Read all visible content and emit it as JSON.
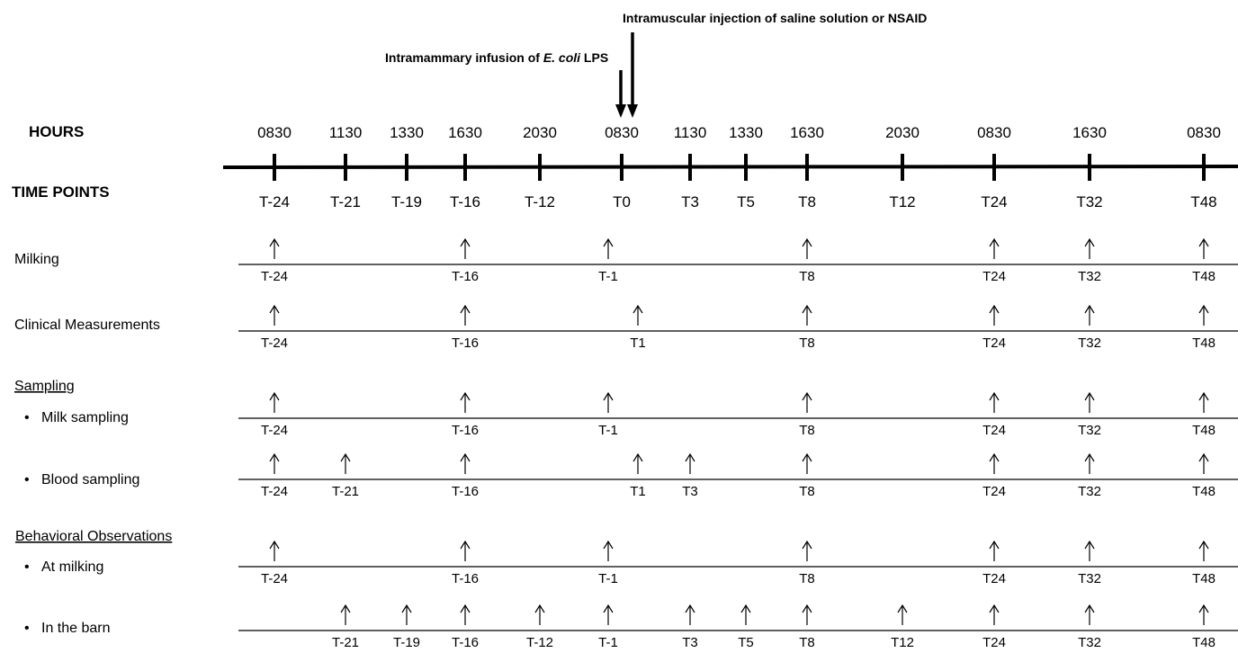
{
  "annotations": {
    "injection": "Intramuscular injection of saline solution or NSAID",
    "infusion_prefix": "Intramammary infusion of ",
    "infusion_italic": "E. coli",
    "infusion_suffix": " LPS"
  },
  "header": {
    "hours_label": "HOURS",
    "timepoints_label": "TIME POINTS"
  },
  "timeline": [
    {
      "hour": "0830",
      "tp": "T-24"
    },
    {
      "hour": "1130",
      "tp": "T-21"
    },
    {
      "hour": "1330",
      "tp": "T-19"
    },
    {
      "hour": "1630",
      "tp": "T-16"
    },
    {
      "hour": "2030",
      "tp": "T-12"
    },
    {
      "hour": "0830",
      "tp": "T0"
    },
    {
      "hour": "1130",
      "tp": "T3"
    },
    {
      "hour": "1330",
      "tp": "T5"
    },
    {
      "hour": "1630",
      "tp": "T8"
    },
    {
      "hour": "2030",
      "tp": "T12"
    },
    {
      "hour": "0830",
      "tp": "T24"
    },
    {
      "hour": "1630",
      "tp": "T32"
    },
    {
      "hour": "0830",
      "tp": "T48"
    }
  ],
  "section_headers": [
    {
      "label": "Sampling"
    },
    {
      "label": "Behavioral Observations"
    }
  ],
  "rows": [
    {
      "label": "Milking",
      "bullet": false,
      "events": [
        "T-24",
        "T-16",
        "T-1",
        "T8",
        "T24",
        "T32",
        "T48"
      ]
    },
    {
      "label": "Clinical Measurements",
      "bullet": false,
      "events": [
        "T-24",
        "T-16",
        "T1",
        "T8",
        "T24",
        "T32",
        "T48"
      ]
    },
    {
      "label": "Milk sampling",
      "bullet": true,
      "events": [
        "T-24",
        "T-16",
        "T-1",
        "T8",
        "T24",
        "T32",
        "T48"
      ]
    },
    {
      "label": "Blood sampling",
      "bullet": true,
      "events": [
        "T-24",
        "T-21",
        "T-16",
        "T1",
        "T3",
        "T8",
        "T24",
        "T32",
        "T48"
      ]
    },
    {
      "label": "At milking",
      "bullet": true,
      "events": [
        "T-24",
        "T-16",
        "T-1",
        "T8",
        "T24",
        "T32",
        "T48"
      ]
    },
    {
      "label": "In the barn",
      "bullet": true,
      "events": [
        "T-21",
        "T-19",
        "T-16",
        "T-12",
        "T-1",
        "T3",
        "T5",
        "T8",
        "T12",
        "T24",
        "T32",
        "T48"
      ]
    }
  ],
  "bullet_char": "•"
}
